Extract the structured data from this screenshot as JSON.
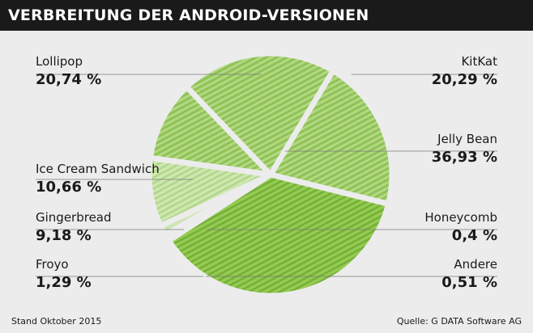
{
  "title": "VERBREITUNG DER ANDROID-VERSIONEN",
  "footer": {
    "left": "Stand Oktober 2015",
    "right": "Quelle: G DATA Software AG"
  },
  "colors": {
    "background": "#ececec",
    "title_bar": "#1a1a1a",
    "title_text": "#ffffff",
    "slice_strong": "#7cb83a",
    "slice_light": "#b5d98a",
    "leader_line": "#7a7a7a"
  },
  "chart_data": {
    "type": "pie",
    "title": "VERBREITUNG DER ANDROID-VERSIONEN",
    "unit": "%",
    "slices": [
      {
        "name": "KitKat",
        "value": 20.29,
        "label": "20,29 %"
      },
      {
        "name": "Jelly Bean",
        "value": 36.93,
        "label": "36,93 %"
      },
      {
        "name": "Honeycomb",
        "value": 0.4,
        "label": "0,4 %"
      },
      {
        "name": "Andere",
        "value": 0.51,
        "label": "0,51 %"
      },
      {
        "name": "Froyo",
        "value": 1.29,
        "label": "1,29 %"
      },
      {
        "name": "Gingerbread",
        "value": 9.18,
        "label": "9,18 %"
      },
      {
        "name": "Ice Cream Sandwich",
        "value": 10.66,
        "label": "10,66 %"
      },
      {
        "name": "Lollipop",
        "value": 20.74,
        "label": "20,74 %"
      }
    ]
  }
}
